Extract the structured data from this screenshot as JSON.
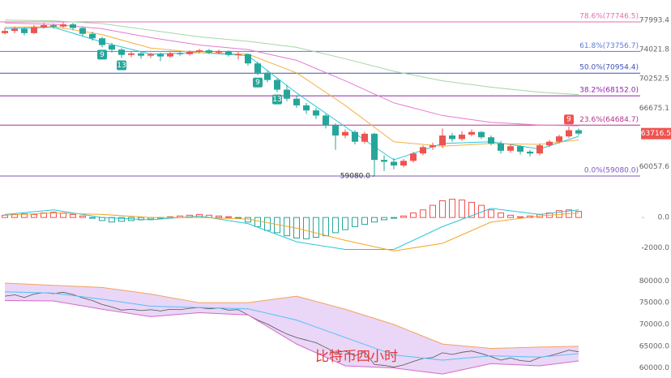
{
  "chart_data": [
    {
      "type": "candlestick",
      "log_scale": true,
      "grid": false,
      "ylim": [
        58400,
        79100
      ],
      "yticks": [
        77993.4,
        74021.8,
        70252.5,
        66675.1,
        60057.6
      ],
      "up_color": "#ef5350",
      "down_color": "#26a69a",
      "candles": [
        [
          76200,
          76900,
          76000,
          76500
        ],
        [
          76500,
          77100,
          76200,
          76800
        ],
        [
          76800,
          77000,
          75900,
          76200
        ],
        [
          76200,
          77300,
          76100,
          77000
        ],
        [
          77000,
          77600,
          76800,
          77300
        ],
        [
          77300,
          77500,
          76800,
          77100
        ],
        [
          77100,
          77700,
          76900,
          77400
        ],
        [
          77400,
          77600,
          76600,
          76900
        ],
        [
          76900,
          77100,
          75800,
          76100
        ],
        [
          76100,
          76400,
          75200,
          75500
        ],
        [
          75500,
          75700,
          74300,
          74600
        ],
        [
          74600,
          74900,
          73600,
          74000
        ],
        [
          74000,
          74200,
          72900,
          73300
        ],
        [
          73300,
          73800,
          73000,
          73500
        ],
        [
          73500,
          73700,
          72800,
          73200
        ],
        [
          73200,
          73600,
          72900,
          73400
        ],
        [
          73400,
          73600,
          72500,
          73100
        ],
        [
          73100,
          73700,
          72900,
          73500
        ],
        [
          73500,
          73800,
          73200,
          73400
        ],
        [
          73400,
          73900,
          73200,
          73700
        ],
        [
          73700,
          74100,
          73500,
          73900
        ],
        [
          73900,
          74100,
          73400,
          73600
        ],
        [
          73600,
          74000,
          73400,
          73800
        ],
        [
          73800,
          73900,
          73100,
          73300
        ],
        [
          73300,
          73700,
          72700,
          73400
        ],
        [
          73400,
          73500,
          71900,
          72200
        ],
        [
          72200,
          72400,
          70700,
          71000
        ],
        [
          71000,
          71300,
          69800,
          70100
        ],
        [
          70100,
          70300,
          68600,
          68900
        ],
        [
          68900,
          69500,
          67500,
          67800
        ],
        [
          67800,
          68100,
          66700,
          67000
        ],
        [
          67000,
          67300,
          66000,
          66400
        ],
        [
          66400,
          66700,
          65400,
          65800
        ],
        [
          65800,
          66000,
          64300,
          64700
        ],
        [
          64700,
          64900,
          61900,
          63500
        ],
        [
          63500,
          64200,
          63200,
          63900
        ],
        [
          63900,
          64100,
          62500,
          62800
        ],
        [
          62800,
          63900,
          62600,
          63700
        ],
        [
          63700,
          63800,
          59080,
          60800
        ],
        [
          60800,
          61300,
          59600,
          60600
        ],
        [
          60600,
          61000,
          59800,
          60200
        ],
        [
          60200,
          60900,
          60000,
          60700
        ],
        [
          60700,
          61700,
          60500,
          61500
        ],
        [
          61500,
          62400,
          61300,
          62200
        ],
        [
          62200,
          62700,
          61900,
          62400
        ],
        [
          62400,
          64300,
          62100,
          63500
        ],
        [
          63500,
          63800,
          62800,
          63100
        ],
        [
          63100,
          64000,
          62900,
          63600
        ],
        [
          63600,
          64200,
          63400,
          63900
        ],
        [
          63900,
          64000,
          63100,
          63300
        ],
        [
          63300,
          63500,
          62400,
          62600
        ],
        [
          62600,
          62900,
          61500,
          61800
        ],
        [
          61800,
          62500,
          61600,
          62300
        ],
        [
          62300,
          62400,
          61400,
          61700
        ],
        [
          61700,
          61900,
          61200,
          61500
        ],
        [
          61500,
          62600,
          61300,
          62400
        ],
        [
          62400,
          63000,
          62200,
          62800
        ],
        [
          62800,
          63600,
          62600,
          63400
        ],
        [
          63400,
          64500,
          63200,
          64100
        ],
        [
          64100,
          64300,
          63500,
          63716.5
        ]
      ],
      "td_labels": [
        null,
        null,
        null,
        null,
        null,
        null,
        null,
        null,
        null,
        null,
        "9",
        null,
        "13",
        null,
        null,
        null,
        null,
        null,
        null,
        null,
        null,
        null,
        null,
        null,
        null,
        null,
        "9",
        null,
        "13",
        null,
        null,
        null,
        null,
        null,
        null,
        null,
        null,
        null,
        null,
        null,
        null,
        null,
        null,
        null,
        null,
        null,
        null,
        null,
        null,
        null,
        null,
        null,
        null,
        null,
        null,
        null,
        null,
        null,
        "9",
        null
      ],
      "x": [
        0,
        5,
        10,
        15,
        20,
        25,
        30,
        35,
        40,
        45,
        50,
        55,
        59
      ],
      "series": [
        {
          "color": "#26c6da",
          "values": [
            76800,
            77000,
            75000,
            73400,
            73600,
            73200,
            68500,
            64500,
            60800,
            62600,
            62800,
            62000,
            63400
          ]
        },
        {
          "color": "#f5b041",
          "values": [
            77000,
            77100,
            76000,
            74200,
            73600,
            73400,
            71000,
            67000,
            62800,
            62300,
            62600,
            62500,
            63000
          ]
        },
        {
          "color": "#e57ad0",
          "values": [
            77600,
            77400,
            76800,
            75600,
            74600,
            74000,
            72600,
            70000,
            67300,
            65800,
            65000,
            64700,
            64600
          ]
        },
        {
          "color": "#a5d6a7",
          "values": [
            78000,
            77900,
            77500,
            76600,
            75700,
            75100,
            74300,
            72800,
            71200,
            70000,
            69200,
            68600,
            68300
          ]
        }
      ],
      "fib_levels": [
        {
          "label": "78.6%(77746.5)",
          "value": 77746.5,
          "color": "#e36fb0"
        },
        {
          "label": "61.8%(73756.7)",
          "value": 73756.7,
          "color": "#5c7bd6"
        },
        {
          "label": "50.0%(70954.4)",
          "value": 70954.4,
          "color": "#3f51b5"
        },
        {
          "label": "38.2%(68152.0)",
          "value": 68152.0,
          "color": "#8e24aa"
        },
        {
          "label": "23.6%(64684.7)",
          "value": 64684.7,
          "color": "#b5308f"
        },
        {
          "label": "0.0%(59080.0)",
          "value": 59080.0,
          "color": "#7e57c2"
        }
      ],
      "low_label": "59080.0",
      "last_price": 63716.5
    },
    {
      "type": "macd",
      "ylim": [
        -2500,
        1500
      ],
      "yticks": [
        {
          "value": 0,
          "label": "0.0"
        },
        {
          "value": -2000,
          "label": "-2000.0"
        }
      ],
      "up_color": "#ef5350",
      "down_color": "#26a69a",
      "histogram": [
        150,
        200,
        250,
        200,
        300,
        350,
        300,
        200,
        100,
        -50,
        -200,
        -300,
        -250,
        -200,
        -150,
        -100,
        -50,
        50,
        100,
        150,
        200,
        150,
        100,
        50,
        -50,
        -300,
        -600,
        -850,
        -1000,
        -1200,
        -1350,
        -1400,
        -1300,
        -1200,
        -1000,
        -800,
        -600,
        -450,
        -300,
        -150,
        -50,
        100,
        300,
        500,
        800,
        1100,
        1200,
        1150,
        1000,
        800,
        500,
        300,
        150,
        50,
        100,
        200,
        300,
        450,
        500,
        400
      ],
      "x": [
        0,
        5,
        10,
        15,
        20,
        25,
        30,
        35,
        40,
        45,
        50,
        55,
        59
      ],
      "series": [
        {
          "color": "#26c6da",
          "values": [
            200,
            500,
            0,
            -150,
            100,
            -400,
            -1600,
            -2100,
            -2100,
            -600,
            600,
            200,
            500
          ]
        },
        {
          "color": "#f5a623",
          "values": [
            150,
            300,
            200,
            0,
            0,
            -100,
            -700,
            -1500,
            -2200,
            -1700,
            -300,
            100,
            300
          ]
        }
      ]
    },
    {
      "type": "bollinger",
      "ylim": [
        59000,
        81000
      ],
      "yticks": [
        {
          "value": 80000,
          "label": "80000.0"
        },
        {
          "value": 75000,
          "label": "75000.0"
        },
        {
          "value": 70000,
          "label": "70000.0"
        },
        {
          "value": 65000,
          "label": "65000.0"
        },
        {
          "value": 60000,
          "label": "60000.0"
        }
      ],
      "fill_color": "#ead6f7",
      "x": [
        0,
        5,
        10,
        15,
        20,
        25,
        30,
        35,
        40,
        45,
        50,
        55,
        59
      ],
      "series": [
        {
          "color": "#f5a25d",
          "values": [
            79500,
            79000,
            78500,
            77000,
            75000,
            75000,
            76500,
            73500,
            70000,
            65500,
            64500,
            64800,
            65000
          ]
        },
        {
          "color": "#4fc3f7",
          "values": [
            77500,
            77200,
            75800,
            74200,
            73900,
            73600,
            71000,
            67000,
            63000,
            61800,
            62800,
            62500,
            63300
          ]
        },
        {
          "color": "#d46ac4",
          "values": [
            75500,
            75400,
            73500,
            71800,
            72700,
            72200,
            65500,
            60500,
            60000,
            58600,
            61000,
            60500,
            61600
          ]
        }
      ]
    }
  ],
  "watermark": "比特币四小时"
}
